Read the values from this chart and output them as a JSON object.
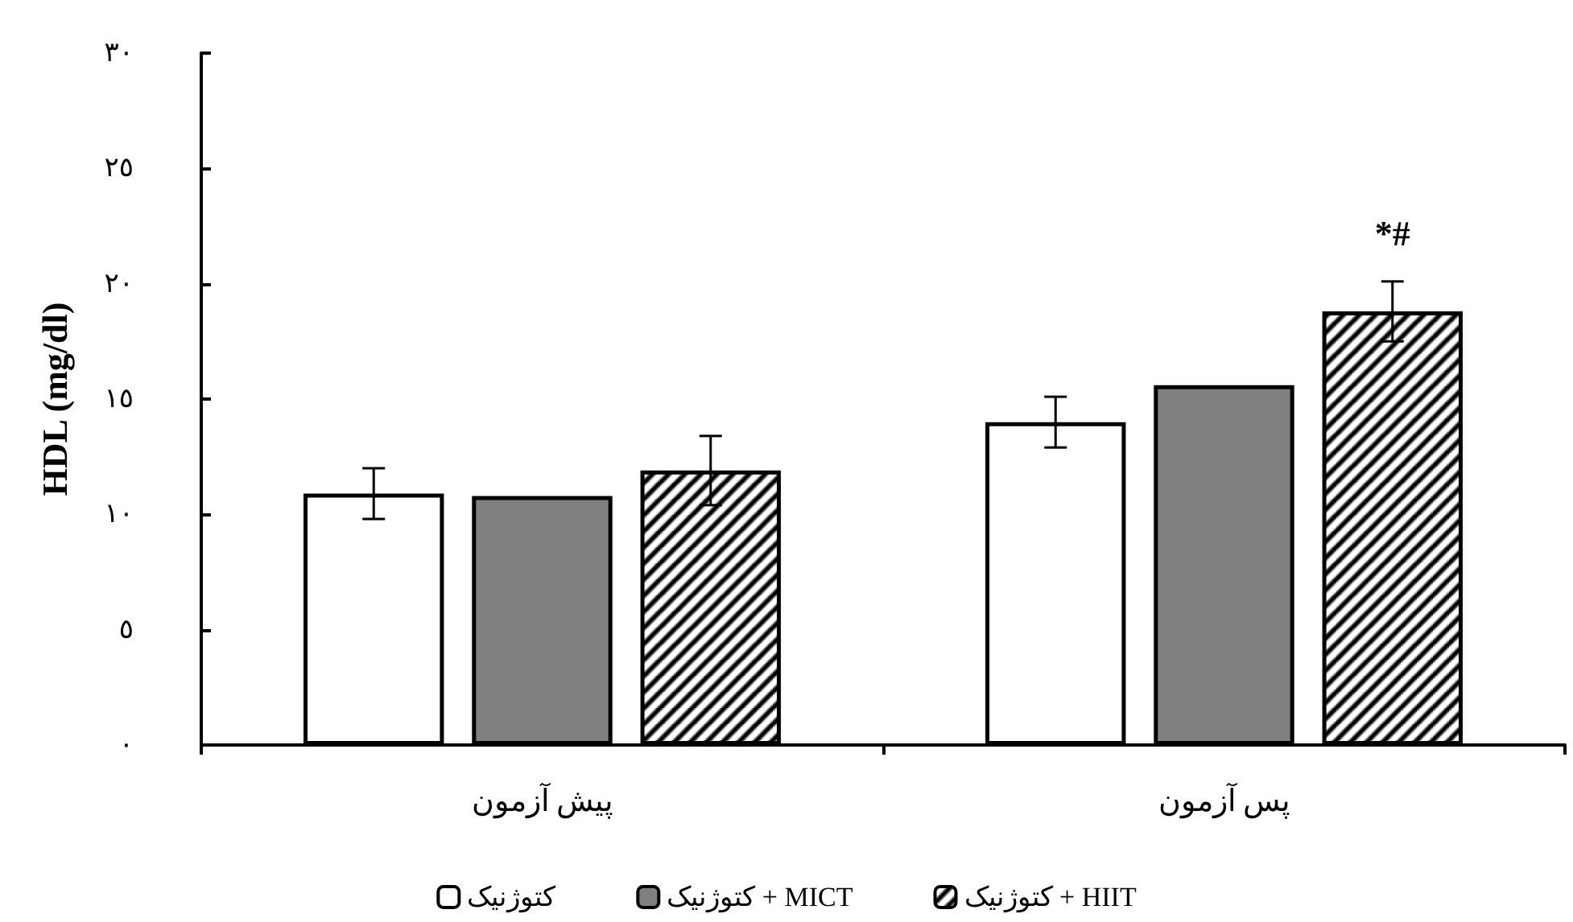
{
  "chart_data": {
    "type": "bar",
    "ylabel": "HDL (mg/dl)",
    "categories": [
      "پیش آزمون",
      "پس آزمون"
    ],
    "series": [
      {
        "name": "کتوژنیک",
        "color": "#ffffff",
        "values": [
          10.9,
          14.0
        ],
        "errors": [
          1.1,
          1.1
        ]
      },
      {
        "name": "کتوژنیک + MICT",
        "color": "#808080",
        "values": [
          10.8,
          15.6
        ]
      },
      {
        "name": "کتوژنیک + HIIT",
        "color": "#000000",
        "values": [
          11.9,
          18.8
        ],
        "errors": [
          1.5,
          1.3
        ]
      }
    ],
    "ylim": [
      0,
      30
    ],
    "yticks": [
      {
        "value": 0,
        "label": "٠"
      },
      {
        "value": 5,
        "label": "٥"
      },
      {
        "value": 10,
        "label": "١٠"
      },
      {
        "value": 15,
        "label": "١٥"
      },
      {
        "value": 20,
        "label": "٢٠"
      },
      {
        "value": 25,
        "label": "٢٥"
      },
      {
        "value": 30,
        "label": "٣٠"
      }
    ],
    "annotations": [
      "*#"
    ],
    "grid": false,
    "legend": "bottom"
  }
}
